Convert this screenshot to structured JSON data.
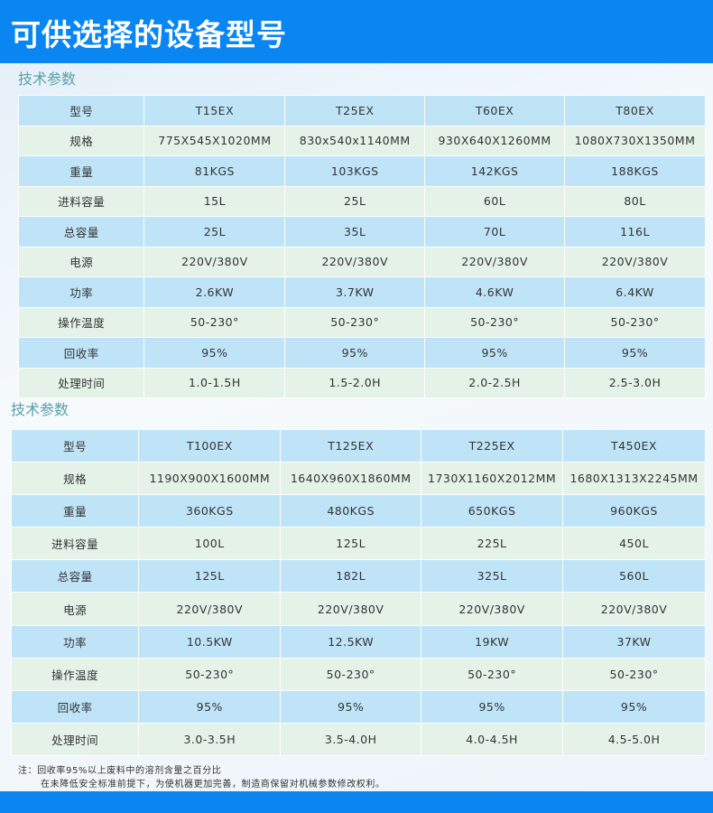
{
  "title": "可供选择的设备型号",
  "section1": {
    "heading": "技术参数",
    "rows": [
      [
        "型号",
        "T15EX",
        "T25EX",
        "T60EX",
        "T80EX"
      ],
      [
        "规格",
        "775X545X1020MM",
        "830x540x1140MM",
        "930X640X1260MM",
        "1080X730X1350MM"
      ],
      [
        "重量",
        "81KGS",
        "103KGS",
        "142KGS",
        "188KGS"
      ],
      [
        "进料容量",
        "15L",
        "25L",
        "60L",
        "80L"
      ],
      [
        "总容量",
        "25L",
        "35L",
        "70L",
        "116L"
      ],
      [
        "电源",
        "220V/380V",
        "220V/380V",
        "220V/380V",
        "220V/380V"
      ],
      [
        "功率",
        "2.6KW",
        "3.7KW",
        "4.6KW",
        "6.4KW"
      ],
      [
        "操作温度",
        "50-230°",
        "50-230°",
        "50-230°",
        "50-230°"
      ],
      [
        "回收率",
        "95%",
        "95%",
        "95%",
        "95%"
      ],
      [
        "处理时间",
        "1.0-1.5H",
        "1.5-2.0H",
        "2.0-2.5H",
        "2.5-3.0H"
      ]
    ]
  },
  "section2": {
    "heading": "技术参数",
    "rows": [
      [
        "型号",
        "T100EX",
        "T125EX",
        "T225EX",
        "T450EX"
      ],
      [
        "规格",
        "1190X900X1600MM",
        "1640X960X1860MM",
        "1730X1160X2012MM",
        "1680X1313X2245MM"
      ],
      [
        "重量",
        "360KGS",
        "480KGS",
        "650KGS",
        "960KGS"
      ],
      [
        "进料容量",
        "100L",
        "125L",
        "225L",
        "450L"
      ],
      [
        "总容量",
        "125L",
        "182L",
        "325L",
        "560L"
      ],
      [
        "电源",
        "220V/380V",
        "220V/380V",
        "220V/380V",
        "220V/380V"
      ],
      [
        "功率",
        "10.5KW",
        "12.5KW",
        "19KW",
        "37KW"
      ],
      [
        "操作温度",
        "50-230°",
        "50-230°",
        "50-230°",
        "50-230°"
      ],
      [
        "回收率",
        "95%",
        "95%",
        "95%",
        "95%"
      ],
      [
        "处理时间",
        "3.0-3.5H",
        "3.5-4.0H",
        "4.0-4.5H",
        "4.5-5.0H"
      ]
    ]
  },
  "note": {
    "line1": "注：回收率95%以上废料中的溶剂含量之百分比",
    "line2": "在未降低安全标准前提下，为使机器更加完善，制造商保留对机械参数修改权利。"
  },
  "colors": {
    "header": "#0a86f2",
    "row_blue": "#bfe4f8",
    "row_green": "#e5f2e8",
    "heading": "#5a9fa8"
  }
}
